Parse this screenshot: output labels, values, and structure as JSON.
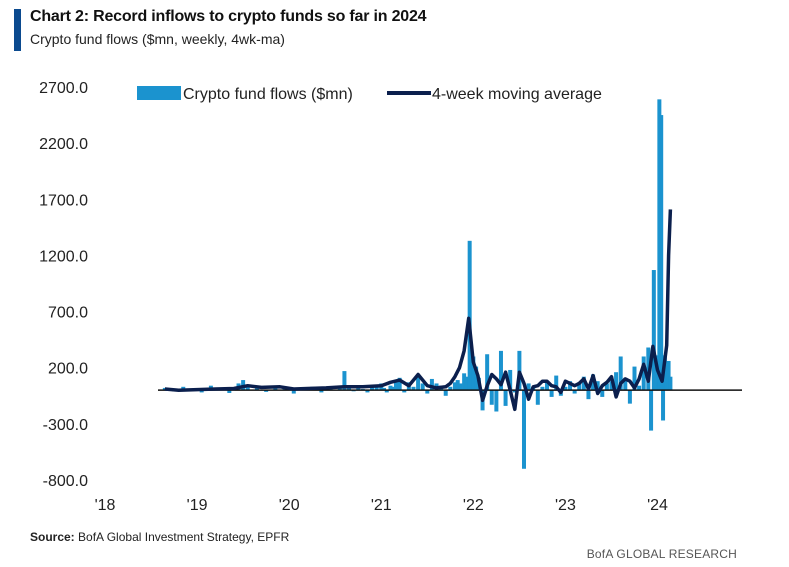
{
  "header": {
    "title": "Chart 2: Record inflows to crypto funds so far in 2024",
    "subtitle": "Crypto fund flows ($mn, weekly, 4wk-ma)"
  },
  "footer": {
    "source_label": "Source:",
    "source_text": "BofA Global Investment Strategy, EPFR",
    "brand": "BofA GLOBAL RESEARCH"
  },
  "colors": {
    "bars": "#1b93cf",
    "line": "#0b1f4d",
    "accent": "#0b4a8f",
    "axis": "#111111"
  },
  "chart_data": {
    "type": "bar",
    "title": "Chart 2: Record inflows to crypto funds so far in 2024",
    "subtitle": "Crypto fund flows ($mn, weekly, 4wk-ma)",
    "xlabel": "",
    "ylabel": "",
    "ylim": [
      -800,
      2700
    ],
    "yticks": [
      2700,
      2200,
      1700,
      1200,
      700,
      200,
      -300,
      -800
    ],
    "ytick_labels": [
      "2700.0",
      "2200.0",
      "1700.0",
      "1200.0",
      "700.0",
      "200.0",
      "-300.0",
      "-800.0"
    ],
    "xlim": [
      2018.0,
      2024.95
    ],
    "xticks": [
      2018,
      2019,
      2020,
      2021,
      2022,
      2023,
      2024
    ],
    "xtick_labels": [
      "'18",
      "'19",
      "'20",
      "'21",
      "'22",
      "'23",
      "'24"
    ],
    "legend_position": "top",
    "grid": false,
    "series": [
      {
        "name": "Crypto fund flows ($mn)",
        "kind": "bar",
        "x": [
          2018.65,
          2018.75,
          2018.85,
          2018.95,
          2019.05,
          2019.15,
          2019.25,
          2019.35,
          2019.45,
          2019.5,
          2019.55,
          2019.65,
          2019.75,
          2019.85,
          2019.95,
          2020.05,
          2020.15,
          2020.25,
          2020.35,
          2020.45,
          2020.55,
          2020.6,
          2020.65,
          2020.7,
          2020.75,
          2020.8,
          2020.85,
          2020.9,
          2020.95,
          2021.0,
          2021.03,
          2021.06,
          2021.1,
          2021.13,
          2021.16,
          2021.2,
          2021.25,
          2021.3,
          2021.35,
          2021.4,
          2021.45,
          2021.5,
          2021.55,
          2021.6,
          2021.65,
          2021.7,
          2021.75,
          2021.8,
          2021.83,
          2021.86,
          2021.9,
          2021.93,
          2021.96,
          2022.0,
          2022.03,
          2022.06,
          2022.1,
          2022.15,
          2022.2,
          2022.25,
          2022.3,
          2022.35,
          2022.4,
          2022.45,
          2022.5,
          2022.55,
          2022.6,
          2022.65,
          2022.7,
          2022.75,
          2022.8,
          2022.85,
          2022.9,
          2022.95,
          2023.0,
          2023.05,
          2023.1,
          2023.15,
          2023.2,
          2023.25,
          2023.3,
          2023.35,
          2023.4,
          2023.45,
          2023.5,
          2023.55,
          2023.6,
          2023.65,
          2023.7,
          2023.75,
          2023.8,
          2023.85,
          2023.9,
          2023.93,
          2023.96,
          2024.0,
          2024.02,
          2024.04,
          2024.06,
          2024.08,
          2024.1,
          2024.12,
          2024.14
        ],
        "values": [
          20,
          -10,
          30,
          10,
          -20,
          40,
          15,
          -25,
          60,
          90,
          30,
          20,
          -15,
          40,
          10,
          -30,
          20,
          30,
          -20,
          10,
          40,
          170,
          30,
          -10,
          20,
          10,
          -20,
          40,
          30,
          60,
          20,
          -20,
          40,
          30,
          70,
          110,
          -20,
          70,
          30,
          120,
          60,
          -30,
          100,
          60,
          40,
          -50,
          30,
          70,
          90,
          60,
          150,
          120,
          1330,
          300,
          210,
          110,
          -180,
          320,
          -130,
          -190,
          350,
          -140,
          180,
          -20,
          350,
          -700,
          60,
          30,
          -130,
          30,
          80,
          -60,
          130,
          -50,
          30,
          80,
          -30,
          70,
          120,
          -80,
          140,
          80,
          -60,
          60,
          80,
          160,
          300,
          110,
          -120,
          210,
          40,
          300,
          380,
          -360,
          1070,
          310,
          2590,
          2450,
          -270,
          310,
          230,
          260,
          120
        ],
        "note": "values estimated from bar heights"
      },
      {
        "name": "4-week moving average",
        "kind": "line",
        "x": [
          2018.65,
          2018.8,
          2019.0,
          2019.2,
          2019.4,
          2019.55,
          2019.7,
          2019.9,
          2020.05,
          2020.2,
          2020.4,
          2020.6,
          2020.8,
          2021.0,
          2021.1,
          2021.2,
          2021.3,
          2021.4,
          2021.5,
          2021.6,
          2021.7,
          2021.75,
          2021.8,
          2021.85,
          2021.9,
          2021.95,
          2022.0,
          2022.05,
          2022.1,
          2022.15,
          2022.2,
          2022.25,
          2022.3,
          2022.35,
          2022.4,
          2022.45,
          2022.5,
          2022.55,
          2022.6,
          2022.65,
          2022.7,
          2022.75,
          2022.8,
          2022.85,
          2022.9,
          2022.95,
          2023.0,
          2023.05,
          2023.1,
          2023.15,
          2023.2,
          2023.25,
          2023.3,
          2023.35,
          2023.4,
          2023.45,
          2023.5,
          2023.55,
          2023.6,
          2023.65,
          2023.7,
          2023.75,
          2023.8,
          2023.85,
          2023.9,
          2023.95,
          2024.0,
          2024.05,
          2024.1,
          2024.12,
          2024.14
        ],
        "values": [
          10,
          0,
          5,
          10,
          15,
          40,
          25,
          30,
          10,
          15,
          20,
          30,
          30,
          40,
          70,
          90,
          40,
          140,
          40,
          20,
          30,
          60,
          120,
          200,
          350,
          640,
          250,
          130,
          -90,
          40,
          140,
          100,
          50,
          160,
          0,
          -170,
          160,
          60,
          -80,
          30,
          40,
          80,
          80,
          40,
          30,
          -20,
          80,
          60,
          40,
          60,
          100,
          10,
          130,
          -30,
          40,
          70,
          120,
          -60,
          60,
          100,
          80,
          20,
          100,
          230,
          80,
          390,
          180,
          80,
          400,
          1200,
          1610
        ]
      }
    ]
  }
}
